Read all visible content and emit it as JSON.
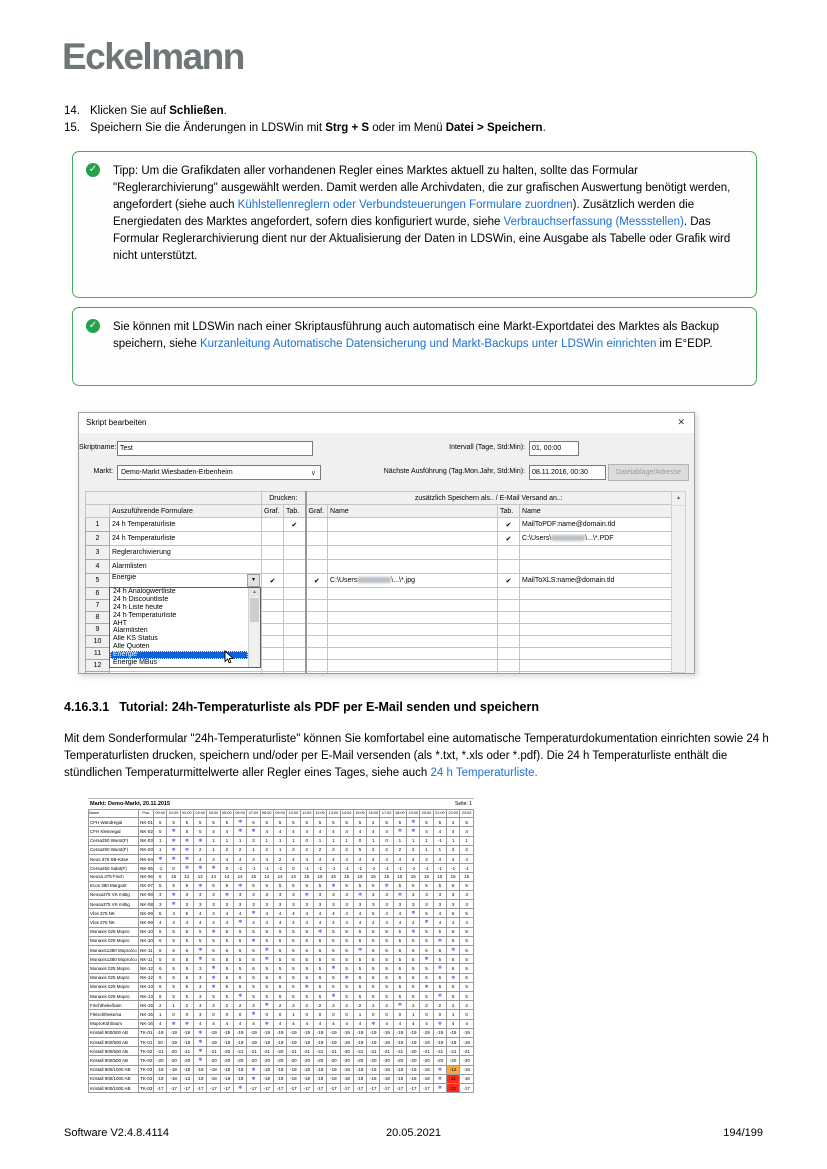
{
  "page": {
    "logo": "Eckelmann",
    "footer": {
      "left": "Software V2.4.8.4114",
      "center": "20.05.2021",
      "right": "194/199"
    }
  },
  "icons": {
    "check": "✓",
    "close": "✕",
    "combo_chevron": "∨",
    "caret_down": "▾",
    "scroll_up": "▴"
  },
  "colors": {
    "tip_green": "#23a14c",
    "link_blue": "#1c70d4",
    "select_blue": "#1160d8",
    "snowflake_blue": "#2c2ce0",
    "warn_orange": "#ffa640",
    "alarm_red": "#ff2a1a"
  },
  "steps": [
    {
      "num": "14.",
      "segments": [
        [
          "t",
          "Klicken Sie auf "
        ],
        [
          "b",
          "Schließen"
        ],
        [
          "t",
          "."
        ]
      ]
    },
    {
      "num": "15.",
      "segments": [
        [
          "t",
          "Speichern Sie die Änderungen in LDSWin mit "
        ],
        [
          "b",
          "Strg + S"
        ],
        [
          "t",
          " oder im Menü "
        ],
        [
          "b",
          "Datei > Speichern"
        ],
        [
          "t",
          "."
        ]
      ]
    }
  ],
  "tips": [
    {
      "segments": [
        [
          "t",
          "Tipp: Um die Grafikdaten aller vorhandenen Regler eines Marktes aktuell zu halten, sollte das Formular \"Reglerarchivierung\" ausgewählt werden. Damit werden alle Archivdaten, die zur grafischen Auswertung benötigt werden, angefordert (siehe auch "
        ],
        [
          "l",
          "Kühlstellenreglern oder Verbundsteuerungen Formulare zuordnen"
        ],
        [
          "t",
          "). Zusätzlich werden die Energiedaten des Marktes angefordert, sofern dies konfiguriert wurde, siehe "
        ],
        [
          "l",
          "Verbrauchserfassung (Messstellen)"
        ],
        [
          "t",
          ". Das Formular Reglerarchivierung dient nur der Aktualisierung der Daten in LDSWin, eine Ausgabe als Tabelle oder Grafik wird nicht unterstützt."
        ]
      ]
    },
    {
      "segments": [
        [
          "t",
          "Sie können mit LDSWin nach einer Skriptausführung auch automatisch eine Markt-Exportdatei des Marktes als Backup speichern, siehe "
        ],
        [
          "l",
          "Kurzanleitung Automatische Datensicherung und Markt-Backups unter LDSWin einrichten"
        ],
        [
          "t",
          " im E°EDP."
        ]
      ]
    }
  ],
  "dialog": {
    "title": "Skript bearbeiten",
    "fields": {
      "skriptname_label": "Skriptname:",
      "skriptname_value": "Test",
      "intervall_label": "Intervall (Tage, Std:Min):",
      "intervall_value": "01, 00:00",
      "markt_label": "Markt:",
      "markt_value": "Demo-Markt Wiesbaden-Erbenheim",
      "naechste_label": "Nächste Ausführung (Tag.Mon.Jahr, Std:Min):",
      "naechste_value": "08.11.2016, 00:30",
      "dateiablage_button": "Dateiablage/Adresse"
    },
    "grid": {
      "group_drucken": "Drucken:",
      "group_speichern": "zusätzlich Speichern als.. / E-Mail Versand an..:",
      "columns": [
        "",
        "Auszuführende Formulare",
        "Graf.",
        "Tab.",
        "Graf.",
        "Name",
        "Tab.",
        "Name"
      ],
      "rows": [
        {
          "n": "1",
          "form": "24 h Temperaturliste",
          "combo": false,
          "d_graf": "",
          "d_tab": "✔",
          "s_graf": "",
          "s_name": "",
          "s_tab": "✔",
          "s_name2": "MailToPDF:name@domain.tld"
        },
        {
          "n": "2",
          "form": "24 h Temperaturliste",
          "combo": false,
          "d_graf": "",
          "d_tab": "",
          "s_graf": "",
          "s_name": "",
          "s_tab": "✔",
          "s_name2": "C:\\Users\\[REDACT]\\...\\*.PDF"
        },
        {
          "n": "3",
          "form": "Reglerarchivierung",
          "combo": false,
          "d_graf": "",
          "d_tab": "",
          "s_graf": "",
          "s_name": "",
          "s_tab": "",
          "s_name2": ""
        },
        {
          "n": "4",
          "form": "Alarmlisten",
          "combo": false,
          "d_graf": "",
          "d_tab": "",
          "s_graf": "",
          "s_name": "",
          "s_tab": "",
          "s_name2": ""
        },
        {
          "n": "5",
          "form": "Energie",
          "combo": true,
          "d_graf": "✔",
          "d_tab": "",
          "s_graf": "✔",
          "s_name": "C:\\Users[REDACT]\\...\\*.jpg",
          "s_tab": "✔",
          "s_name2": "MailToXLS:name@domain.tld"
        },
        {
          "n": "6",
          "form": "",
          "combo": false,
          "d_graf": "",
          "d_tab": "",
          "s_graf": "",
          "s_name": "",
          "s_tab": "",
          "s_name2": ""
        },
        {
          "n": "7",
          "form": "",
          "combo": false,
          "d_graf": "",
          "d_tab": "",
          "s_graf": "",
          "s_name": "",
          "s_tab": "",
          "s_name2": ""
        },
        {
          "n": "8",
          "form": "",
          "combo": false,
          "d_graf": "",
          "d_tab": "",
          "s_graf": "",
          "s_name": "",
          "s_tab": "",
          "s_name2": ""
        },
        {
          "n": "9",
          "form": "",
          "combo": false,
          "d_graf": "",
          "d_tab": "",
          "s_graf": "",
          "s_name": "",
          "s_tab": "",
          "s_name2": ""
        },
        {
          "n": "10",
          "form": "",
          "combo": false,
          "d_graf": "",
          "d_tab": "",
          "s_graf": "",
          "s_name": "",
          "s_tab": "",
          "s_name2": ""
        },
        {
          "n": "11",
          "form": "",
          "combo": false,
          "d_graf": "",
          "d_tab": "",
          "s_graf": "",
          "s_name": "",
          "s_tab": "",
          "s_name2": ""
        },
        {
          "n": "12",
          "form": "",
          "combo": false,
          "d_graf": "",
          "d_tab": "",
          "s_graf": "",
          "s_name": "",
          "s_tab": "",
          "s_name2": ""
        },
        {
          "n": "13",
          "form": "",
          "combo": false,
          "d_graf": "",
          "d_tab": "",
          "s_graf": "",
          "s_name": "",
          "s_tab": "",
          "s_name2": ""
        }
      ]
    },
    "dropdown": {
      "items": [
        "24 h Analogwertliste",
        "24 h Discountliste",
        "24 h Liste heute",
        "24 h Temperaturliste",
        "AHT",
        "Alarmlisten",
        "Alle KS Status",
        "Alle Quoten",
        "Energie",
        "Energie MBus"
      ],
      "selected": "Energie"
    }
  },
  "section": {
    "number": "4.16.3.1",
    "title": "Tutorial: 24h-Temperaturliste als PDF per E-Mail senden und speichern",
    "para_segments": [
      [
        "t",
        "Mit dem Sonderformular \"24h-Temperaturliste\" können Sie komfortabel eine automatische Temperaturdokumentation einrichten sowie 24 h Temperaturlisten drucken, speichern und/oder per E-Mail versenden (als *.txt, *.xls oder *.pdf). Die 24 h Temperaturliste enthält die stündlichen Temperaturmittelwerte aller Regler eines Tages, siehe auch "
      ],
      [
        "l",
        "24 h Temperaturliste"
      ],
      [
        "r",
        "."
      ]
    ]
  },
  "temp_report": {
    "title_left": "Markt: Demo-Markt, 20.11.2015",
    "title_right": "Seite: 1",
    "col_name": "Name",
    "col_pos": "Pos.",
    "hours": [
      "00:00",
      "01:00",
      "02:00",
      "03:00",
      "04:00",
      "05:00",
      "06:00",
      "07:00",
      "08:00",
      "09:00",
      "10:00",
      "11:00",
      "12:00",
      "13:00",
      "14:00",
      "15:00",
      "16:00",
      "17:00",
      "18:00",
      "19:00",
      "20:00",
      "21:00",
      "22:00",
      "23:00"
    ],
    "rows": [
      {
        "name": "CFH Wandregal",
        "pos": "NK-01",
        "vals": "5 5 5 5 5 5 ❄ 6 5 5 5 5 5 5 5 5 4 5 5 ❄ 5 5 4 5"
      },
      {
        "name": "CFH Kleinregal",
        "pos": "NK-02",
        "vals": "5 ❄ 5 5 4 4 ❄ ❄ 4 4 4 4 4 4 4 4 4 4 ❄ ❄ 4 4 4 4"
      },
      {
        "name": "Cersa250 Wurst(F)",
        "pos": "NK-03",
        "vals": "1 ❄ ❄ ❄ 1 1 1 2 1 1 1 0 1 1 1 0 1 0 1 1 1 -1 1 1"
      },
      {
        "name": "Cersa250 Wurst(F)",
        "pos": "NK-03",
        "vals": "1 ❄ ❄ 2 1 2 2 1 2 1 2 2 2 2 2 5 2 2 2 2 1 1 2 2"
      },
      {
        "name": "Neos 375 SB-Käse",
        "pos": "NK-04",
        "vals": "❄ ❄ ❄ 4 4 4 4 4 4 2 4 4 4 4 4 4 4 4 4 4 4 4 4 4"
      },
      {
        "name": "Cersa250 Salat(F)",
        "pos": "NK-05",
        "vals": "-1 0 ❄ ❄ ❄ 0 -1 -1 -1 -1 0 -1 -1 -1 -1 -1 -1 -1 -1 -1 -1 -1 -1 -1"
      },
      {
        "name": "Neosa 375 Fisch",
        "pos": "NK-06",
        "vals": "6 16 12 12 14 14 14 15 14 14 14 15 15 15 15 15 15 15 15 15 15 15 15 15"
      },
      {
        "name": "Ecos 380 Margarit",
        "pos": "NK-07",
        "vals": "5 5 5 ❄ 5 5 ❄ 5 5 5 5 5 5 ❄ 5 5 5 ❄ 5 5 5 5 5 5"
      },
      {
        "name": "Neosa375 VK mittig",
        "pos": "NK-08",
        "vals": "3 ❄ 3 3 3 ❄ 3 3 3 3 3 ❄ 3 3 3 ❄ 3 3 ❄ 3 3 3 3 3"
      },
      {
        "name": "Neosa375 VK mittig",
        "pos": "NK-08",
        "vals": "3 ❄ 3 3 3 3 3 3 3 3 3 3 3 3 3 3 3 3 3 3 3 3 3 3"
      },
      {
        "name": "Vlos 375 NK",
        "pos": "NK-09",
        "vals": "5 4 5 4 4 4 4 ❄ 4 4 4 4 4 4 4 4 5 4 4 ❄ 5 4 5 5"
      },
      {
        "name": "Vlos 375 NK",
        "pos": "NK-09",
        "vals": "4 4 4 4 4 4 ❄ 4 4 4 4 4 4 4 4 4 4 4 4 4 ❄ 4 4 4"
      },
      {
        "name": "Monaxis 025 Mopro",
        "pos": "NK-10",
        "vals": "5 5 5 5 ❄ 5 5 5 5 5 5 5 ❄ 5 5 5 5 5 5 ❄ 5 5 5 5"
      },
      {
        "name": "Monaxis 025 Mopro",
        "pos": "NK-10",
        "vals": "6 5 5 5 5 5 5 ❄ 5 5 5 6 5 5 5 5 5 5 5 5 5 ❄ 5 5"
      },
      {
        "name": "Monaxis1380 Mopro/co",
        "pos": "NK-11",
        "vals": "6 6 6 ❄ 6 6 6 6 ❄ 6 6 6 6 6 6 ❄ 6 6 6 6 6 6 ❄ 6"
      },
      {
        "name": "Monaxis1380 Mopro/co",
        "pos": "NK-11",
        "vals": "5 5 5 ❄ 5 5 5 5 ❄ 5 5 5 5 5 5 5 5 5 5 5 ❄ 5 5 5"
      },
      {
        "name": "Monaxis 025 Mopro",
        "pos": "NK-12",
        "vals": "6 5 5 3 ❄ 5 5 6 5 5 5 5 5 ❄ 5 5 5 5 6 5 5 ❄ 5 5"
      },
      {
        "name": "Monaxis 025 Mopro",
        "pos": "NK-12",
        "vals": "6 6 6 3 ❄ 6 6 6 6 6 6 6 6 6 ❄ 6 6 6 6 6 6 6 ❄ 6"
      },
      {
        "name": "Monaxis 025 Mopro",
        "pos": "NK-13",
        "vals": "6 5 5 3 ❄ 5 5 5 5 5 5 ❄ 5 5 5 5 5 5 5 5 ❄ 5 5 5"
      },
      {
        "name": "Monaxis 025 Mopro",
        "pos": "NK-13",
        "vals": "6 5 5 3 5 5 ❄ 5 5 5 5 5 5 ❄ 5 5 5 5 5 5 5 ❄ 5 5"
      },
      {
        "name": "Fischtheke/bain",
        "pos": "NK-15",
        "vals": "2 1 2 3 2 2 2 2 ❄ 2 2 2 2 2 2 2 2 2 ❄ 2 2 2 2 2"
      },
      {
        "name": "Fleischtheke/sa",
        "pos": "NK-15",
        "vals": "1 0 0 3 0 0 0 ❄ 0 0 1 0 0 0 0 1 0 0 0 1 0 0 1 0"
      },
      {
        "name": "MoproKühlraum",
        "pos": "NK-16",
        "vals": "4 ❄ ❄ 4 4 4 4 4 ❄ 4 4 4 4 4 4 4 ❄ 4 4 4 4 ❄ 4 4"
      },
      {
        "name": "Kristall 900/500 AB",
        "pos": "TK-01",
        "vals": "-19 -19 -19 ❄ -19 -19 -19 -19 -19 -19 -19 -19 -19 -19 -19 -19 -19 -19 -19 -19 -19 -19 -19 -19"
      },
      {
        "name": "Kristall 900/500 AB",
        "pos": "TK-01",
        "vals": "20 -19 -19 ❄ -19 -19 -19 -19 -19 -19 -19 -19 -19 -19 -19 -19 -19 -19 -18 -19 -19 -19 -19 -19"
      },
      {
        "name": "Kristall 900/500 AB",
        "pos": "TK-02",
        "vals": "-21 -20 -21 ❄ -21 -20 -21 -21 -21 -20 -21 -21 -21 -21 -20 -21 -21 -21 -21 -20 -21 -21 -21 -21"
      },
      {
        "name": "Kristall 900/500 AB",
        "pos": "TK-02",
        "vals": "-20 -20 -20 ❄ -20 -20 -20 -20 -20 -20 -20 -20 -20 -20 -20 -20 -20 -20 -20 -20 -20 -20 -20 -20"
      },
      {
        "name": "Kristall 900/1000 AB",
        "pos": "TK-03",
        "vals": "-18 -18 -18 -18 -18 -18 -18 ❄ -18 -18 -18 -18 -18 -18 -18 -18 -18 -18 -18 -18 -18 ❄ O:-12 -18"
      },
      {
        "name": "Kristall 900/1000 AB",
        "pos": "TK-03",
        "vals": "-18 -18 -13 -18 -18 -18 -18 ❄ -18 -18 -18 -18 -18 -18 -18 -18 -18 -18 -18 -18 -18 ❄ R:11 -16"
      },
      {
        "name": "Kristall 900/1000 AB",
        "pos": "TK-03",
        "vals": "-17 -17 -17 -17 -17 -17 ❄ -17 -17 -17 -17 -17 -17 -17 -17 -17 -17 -17 -17 -17 -17 ❄ R:13 -17"
      }
    ]
  }
}
